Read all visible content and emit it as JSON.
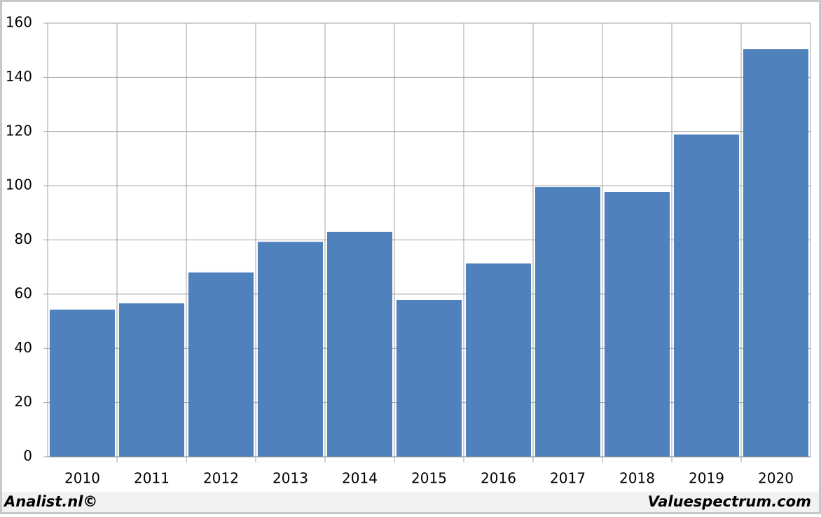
{
  "chart_data": {
    "type": "bar",
    "categories": [
      "2010",
      "2011",
      "2012",
      "2013",
      "2014",
      "2015",
      "2016",
      "2017",
      "2018",
      "2019",
      "2020"
    ],
    "values": [
      54.3,
      56.6,
      68,
      79.3,
      83,
      57.9,
      71.3,
      99.5,
      97.7,
      118.9,
      150.4
    ],
    "color": "#4f81bd",
    "ylim": [
      0,
      160
    ],
    "yticks": [
      0,
      20,
      40,
      60,
      80,
      100,
      120,
      140,
      160
    ],
    "grid": true,
    "annotations": [
      "Analist.nl©",
      "Valuespectrum.com"
    ]
  }
}
